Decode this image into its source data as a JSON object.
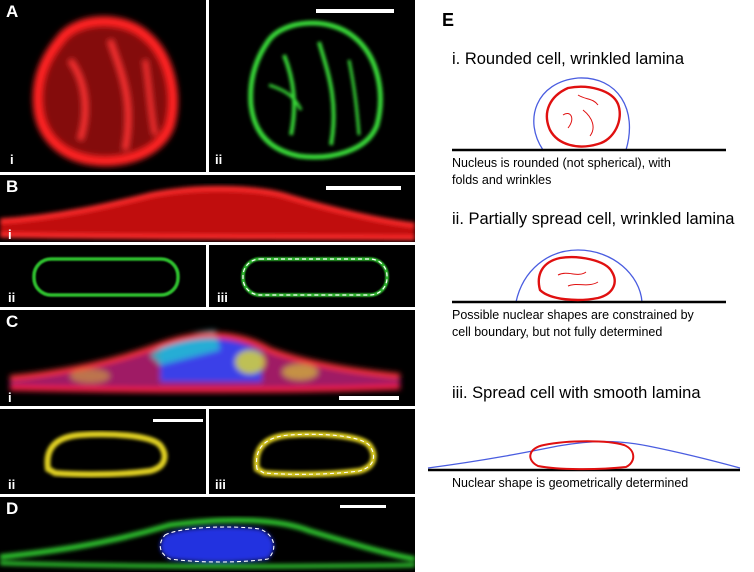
{
  "panels": {
    "A": {
      "label": "A",
      "sub": [
        "i",
        "ii"
      ]
    },
    "B": {
      "label": "B",
      "sub": [
        "i",
        "ii",
        "iii"
      ]
    },
    "C": {
      "label": "C",
      "sub": [
        "i",
        "ii",
        "iii"
      ]
    },
    "D": {
      "label": "D"
    },
    "E": {
      "label": "E"
    }
  },
  "schematic": {
    "i": {
      "heading": "i. Rounded cell, wrinkled lamina",
      "caption_line1": "Nucleus is rounded (not spherical), with",
      "caption_line2": "folds and wrinkles"
    },
    "ii": {
      "heading": "ii. Partially spread cell, wrinkled lamina",
      "caption_line1": "Possible nuclear shapes are constrained by",
      "caption_line2": "cell boundary, but not fully determined"
    },
    "iii": {
      "heading": "iii. Spread cell with smooth lamina",
      "caption_line1": "Nuclear shape is geometrically determined"
    }
  },
  "colors": {
    "lamina_red": "#e01010",
    "cell_blue": "#4a5de0",
    "fluor_red": "#ff1a1a",
    "fluor_green": "#2fd02f",
    "fluor_yellow": "#e8d020",
    "fluor_blue": "#2a3aff"
  }
}
